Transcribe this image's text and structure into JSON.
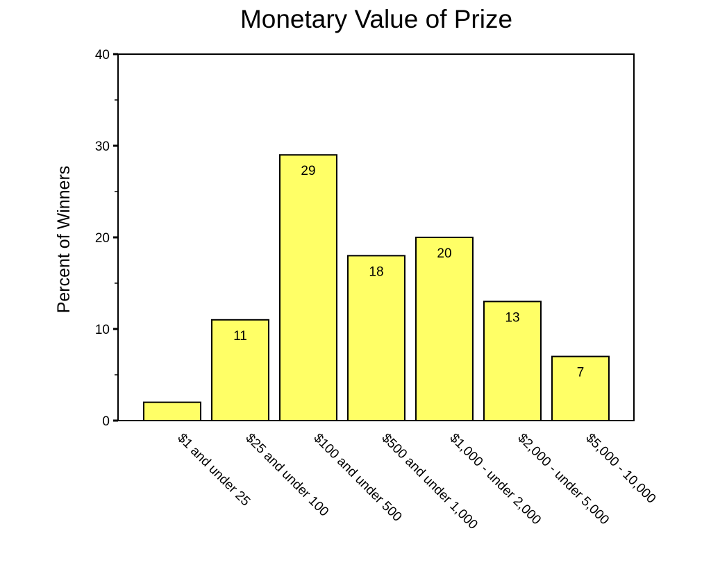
{
  "chart_data": {
    "type": "bar",
    "title": "Monetary Value of Prize",
    "xlabel": "",
    "ylabel": "Percent of Winners",
    "categories": [
      "$1 and under 25",
      "$25 and under 100",
      "$100 and under 500",
      "$500 and under 1,000",
      "$1,000 - under 2,000",
      "$2,000 - under 5,000",
      "$5,000 - 10,000"
    ],
    "values": [
      2,
      11,
      29,
      18,
      20,
      13,
      7
    ],
    "data_labels": [
      "",
      "11",
      "29",
      "18",
      "20",
      "13",
      "7"
    ],
    "ylim": [
      0,
      40
    ],
    "yticks": [
      0,
      10,
      20,
      30,
      40
    ],
    "y_minor_ticks": [
      5,
      15,
      25,
      35
    ],
    "grid": false,
    "legend": "none",
    "bar_color": "#ffff66",
    "bar_edge_color": "#000000"
  }
}
